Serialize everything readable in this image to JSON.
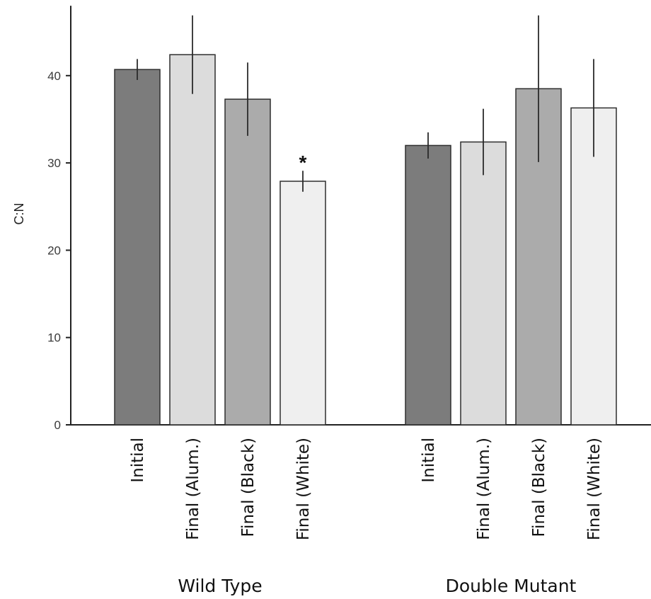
{
  "chart_data": {
    "type": "bar",
    "title": "",
    "ylabel": "C:N",
    "xlabel": "",
    "ylim": [
      0,
      48
    ],
    "yticks": [
      0,
      10,
      20,
      30,
      40
    ],
    "grid": false,
    "groups": [
      {
        "name": "Wild Type",
        "bars": [
          {
            "category": "Initial",
            "value": 40.7,
            "err_low": 39.5,
            "err_high": 41.9,
            "color": "#7c7c7c",
            "annotation": ""
          },
          {
            "category": "Final (Alum.)",
            "value": 42.4,
            "err_low": 37.9,
            "err_high": 46.9,
            "color": "#dcdcdc",
            "annotation": ""
          },
          {
            "category": "Final (Black)",
            "value": 37.3,
            "err_low": 33.1,
            "err_high": 41.5,
            "color": "#ababab",
            "annotation": ""
          },
          {
            "category": "Final (White)",
            "value": 27.9,
            "err_low": 26.7,
            "err_high": 29.1,
            "color": "#efefef",
            "annotation": "*"
          }
        ]
      },
      {
        "name": "Double Mutant",
        "bars": [
          {
            "category": "Initial",
            "value": 32.0,
            "err_low": 30.5,
            "err_high": 33.5,
            "color": "#7c7c7c",
            "annotation": ""
          },
          {
            "category": "Final (Alum.)",
            "value": 32.4,
            "err_low": 28.6,
            "err_high": 36.2,
            "color": "#dcdcdc",
            "annotation": ""
          },
          {
            "category": "Final (Black)",
            "value": 38.5,
            "err_low": 30.1,
            "err_high": 46.9,
            "color": "#ababab",
            "annotation": ""
          },
          {
            "category": "Final (White)",
            "value": 36.3,
            "err_low": 30.7,
            "err_high": 41.9,
            "color": "#efefef",
            "annotation": ""
          }
        ]
      }
    ]
  }
}
